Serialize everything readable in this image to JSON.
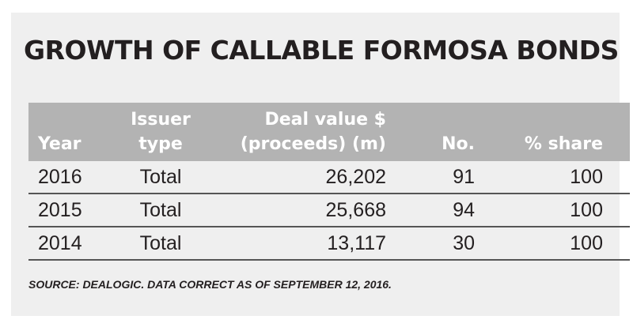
{
  "title": "GROWTH OF CALLABLE FORMOSA BONDS",
  "table": {
    "headers": {
      "year": "Year",
      "issuer_type": [
        "Issuer",
        "type"
      ],
      "deal_value": [
        "Deal value $",
        "(proceeds) (m)"
      ],
      "number": "No.",
      "share": "% share"
    },
    "rows": [
      {
        "year": "2016",
        "issuer_type": "Total",
        "deal_value": "26,202",
        "number": "91",
        "share": "100"
      },
      {
        "year": "2015",
        "issuer_type": "Total",
        "deal_value": "25,668",
        "number": "94",
        "share": "100"
      },
      {
        "year": "2014",
        "issuer_type": "Total",
        "deal_value": "13,117",
        "number": "30",
        "share": "100"
      }
    ]
  },
  "source": "SOURCE: DEALOGIC. DATA CORRECT AS OF SEPTEMBER 12, 2016.",
  "colors": {
    "panel_background": "#efefef",
    "header_background": "#b3b3b3",
    "header_text": "#ffffff",
    "body_text": "#231f20",
    "row_rule": "#555555"
  },
  "chart_data": {
    "type": "table",
    "title": "GROWTH OF CALLABLE FORMOSA BONDS",
    "columns": [
      "Year",
      "Issuer type",
      "Deal value $ (proceeds) (m)",
      "No.",
      "% share"
    ],
    "rows": [
      [
        2016,
        "Total",
        26202,
        91,
        100
      ],
      [
        2015,
        "Total",
        25668,
        94,
        100
      ],
      [
        2014,
        "Total",
        13117,
        30,
        100
      ]
    ],
    "source": "SOURCE: DEALOGIC. DATA CORRECT AS OF SEPTEMBER 12, 2016."
  }
}
